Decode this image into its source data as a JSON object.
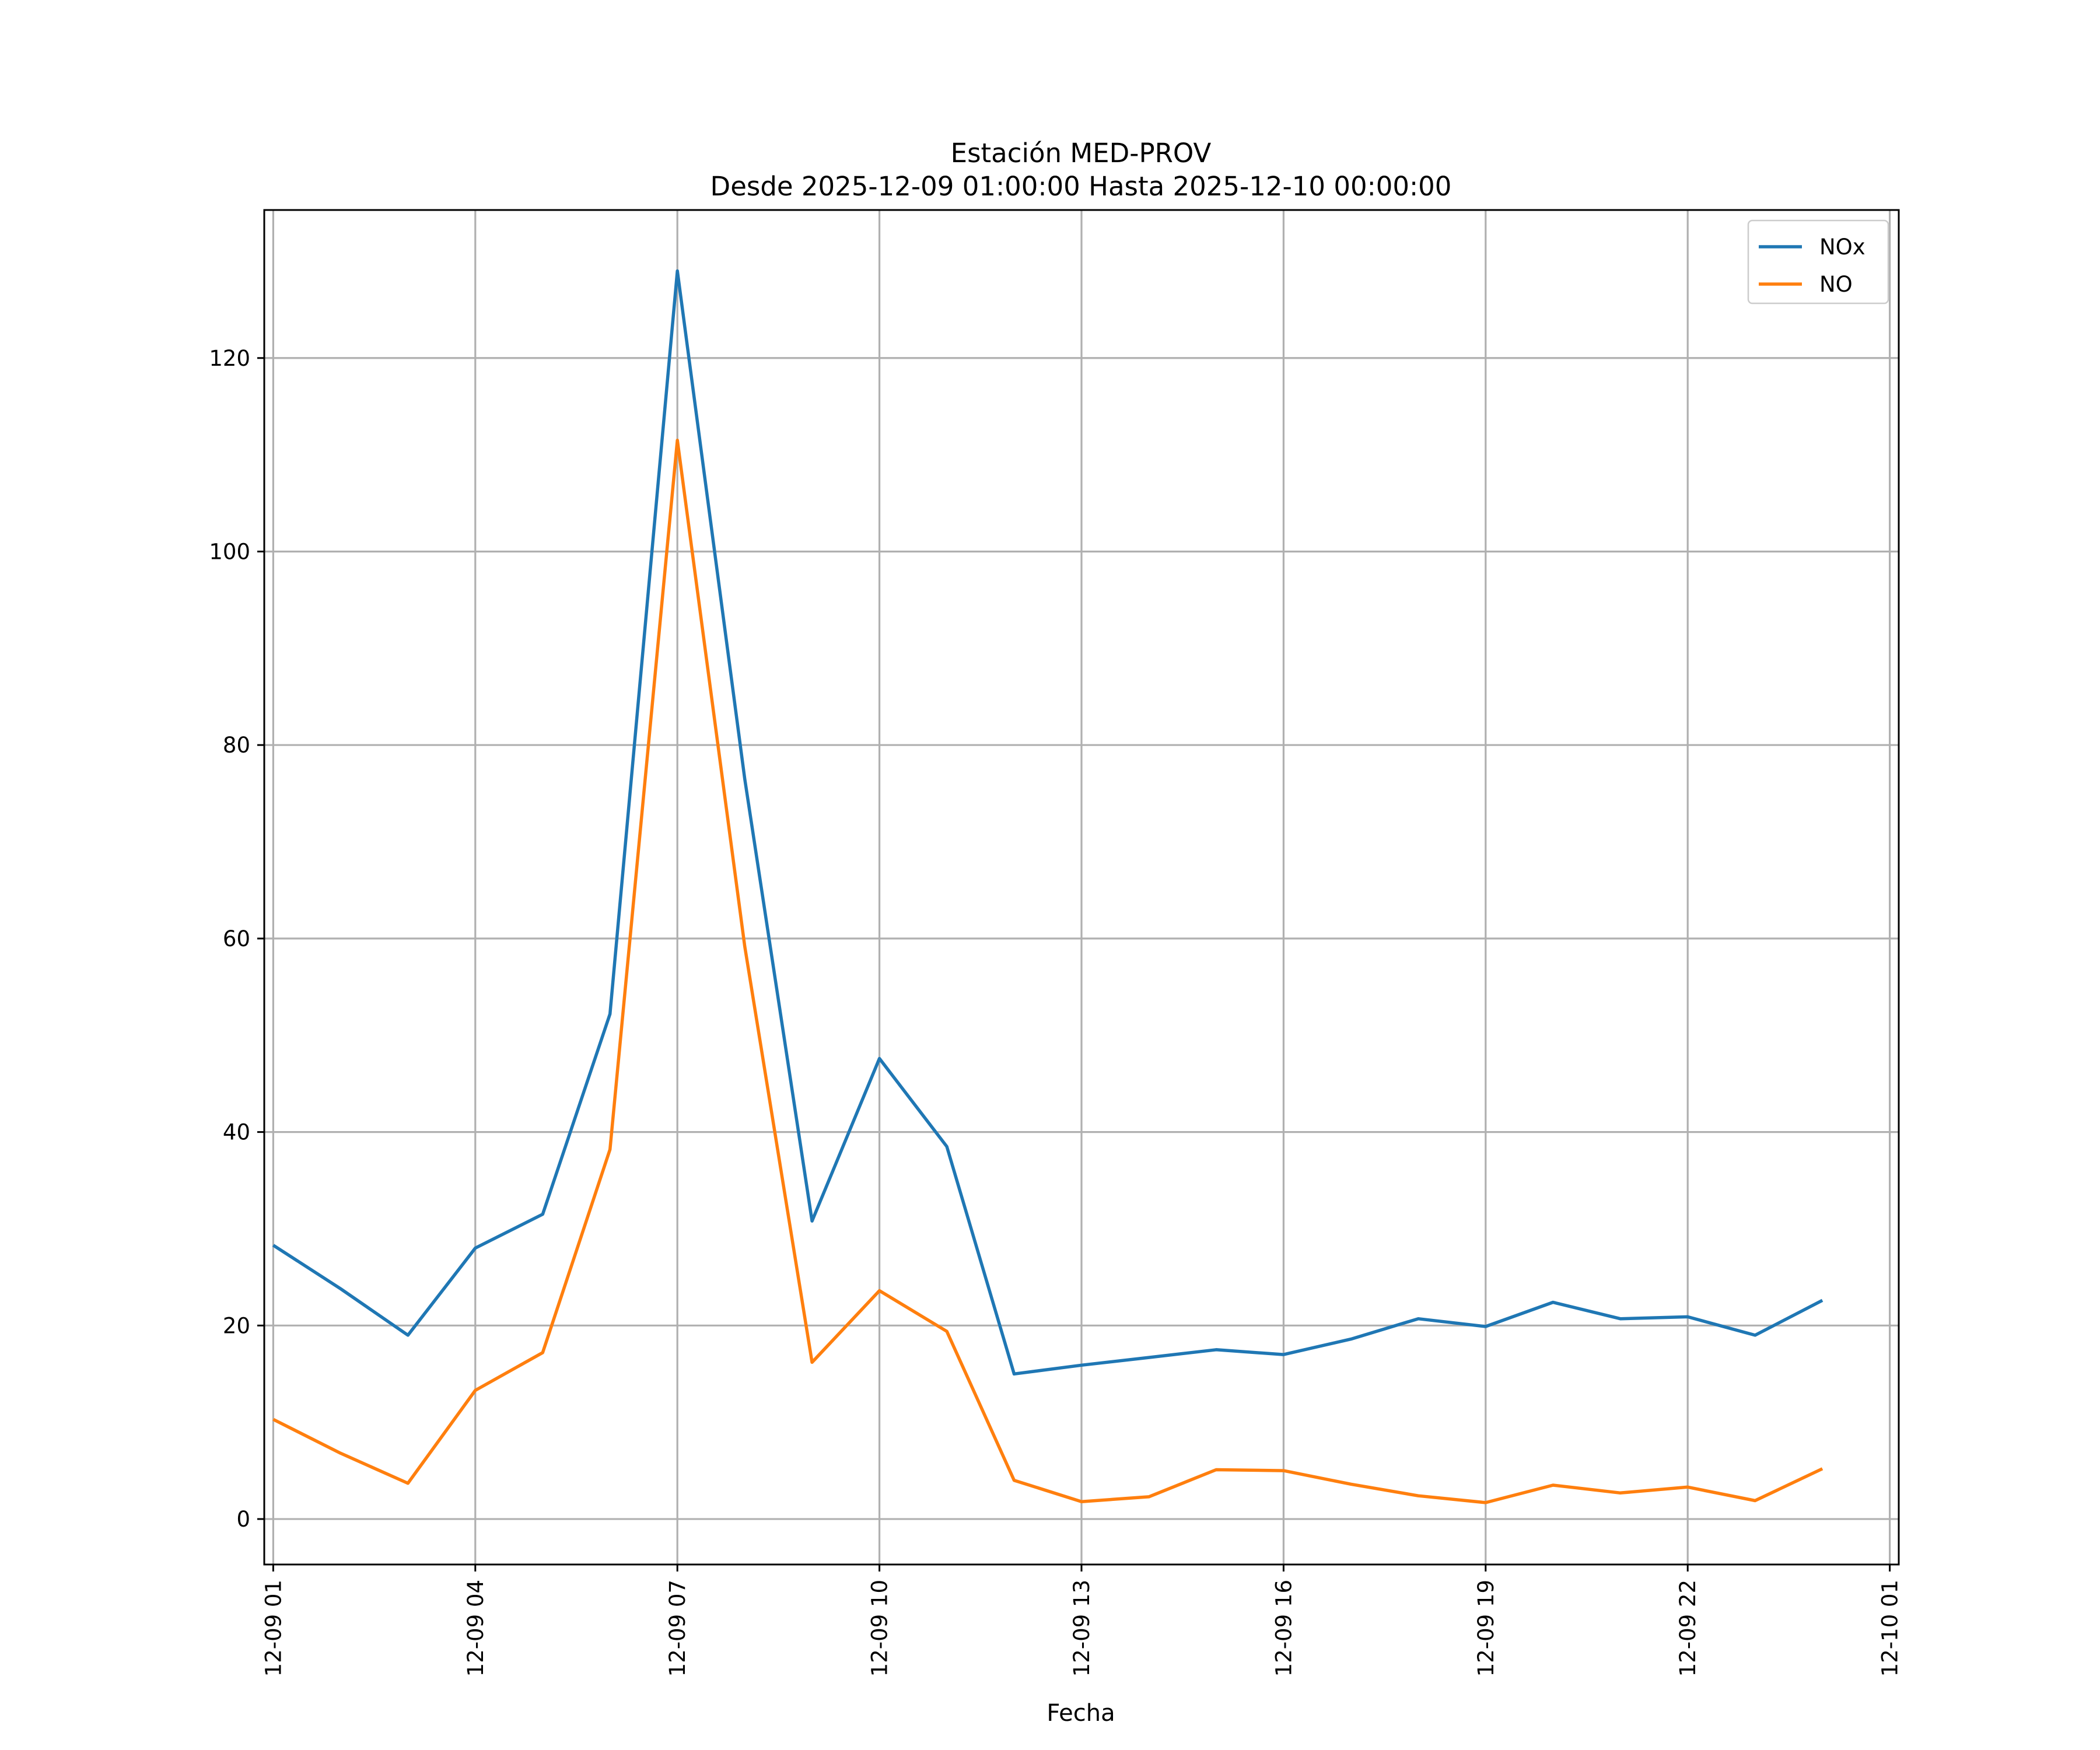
{
  "chart_data": {
    "type": "line",
    "title": "Estación MED-PROV",
    "subtitle": "Desde 2025-12-09 01:00:00 Hasta 2025-12-10 00:00:00",
    "xlabel": "Fecha",
    "ylabel": "",
    "x": [
      "2025-12-09 01:00",
      "2025-12-09 02:00",
      "2025-12-09 03:00",
      "2025-12-09 04:00",
      "2025-12-09 05:00",
      "2025-12-09 06:00",
      "2025-12-09 07:00",
      "2025-12-09 08:00",
      "2025-12-09 09:00",
      "2025-12-09 10:00",
      "2025-12-09 11:00",
      "2025-12-09 12:00",
      "2025-12-09 13:00",
      "2025-12-09 14:00",
      "2025-12-09 15:00",
      "2025-12-09 16:00",
      "2025-12-09 17:00",
      "2025-12-09 18:00",
      "2025-12-09 19:00",
      "2025-12-09 20:00",
      "2025-12-09 21:00",
      "2025-12-09 22:00",
      "2025-12-09 23:00",
      "2025-12-10 00:00"
    ],
    "series": [
      {
        "name": "NOx",
        "color": "#1f77b4",
        "values": [
          28.3,
          23.8,
          19.0,
          28.0,
          31.5,
          52.2,
          129.0,
          76.5,
          30.8,
          47.6,
          38.5,
          15.0,
          15.9,
          16.7,
          17.5,
          17.0,
          18.6,
          20.7,
          19.9,
          22.4,
          20.7,
          20.9,
          19.0,
          22.6
        ]
      },
      {
        "name": "NO",
        "color": "#ff7f0e",
        "values": [
          10.3,
          6.8,
          3.7,
          13.3,
          17.2,
          38.2,
          111.5,
          59.2,
          16.2,
          23.6,
          19.4,
          4.0,
          1.8,
          2.3,
          5.1,
          5.0,
          3.6,
          2.4,
          1.7,
          3.5,
          2.7,
          3.3,
          1.9,
          5.2
        ]
      }
    ],
    "ylim": [
      -4.7,
      135.3
    ],
    "xlim": [
      "2025-12-09 00:52",
      "2025-12-10 01:08"
    ],
    "yticks": [
      0,
      20,
      40,
      60,
      80,
      100,
      120
    ],
    "xticks": [
      {
        "value": "2025-12-09 01:00",
        "label": "12-09 01"
      },
      {
        "value": "2025-12-09 04:00",
        "label": "12-09 04"
      },
      {
        "value": "2025-12-09 07:00",
        "label": "12-09 07"
      },
      {
        "value": "2025-12-09 10:00",
        "label": "12-09 10"
      },
      {
        "value": "2025-12-09 13:00",
        "label": "12-09 13"
      },
      {
        "value": "2025-12-09 16:00",
        "label": "12-09 16"
      },
      {
        "value": "2025-12-09 19:00",
        "label": "12-09 19"
      },
      {
        "value": "2025-12-09 22:00",
        "label": "12-09 22"
      },
      {
        "value": "2025-12-10 01:00",
        "label": "12-10 01"
      }
    ],
    "grid": true,
    "legend_position": "top-right"
  }
}
